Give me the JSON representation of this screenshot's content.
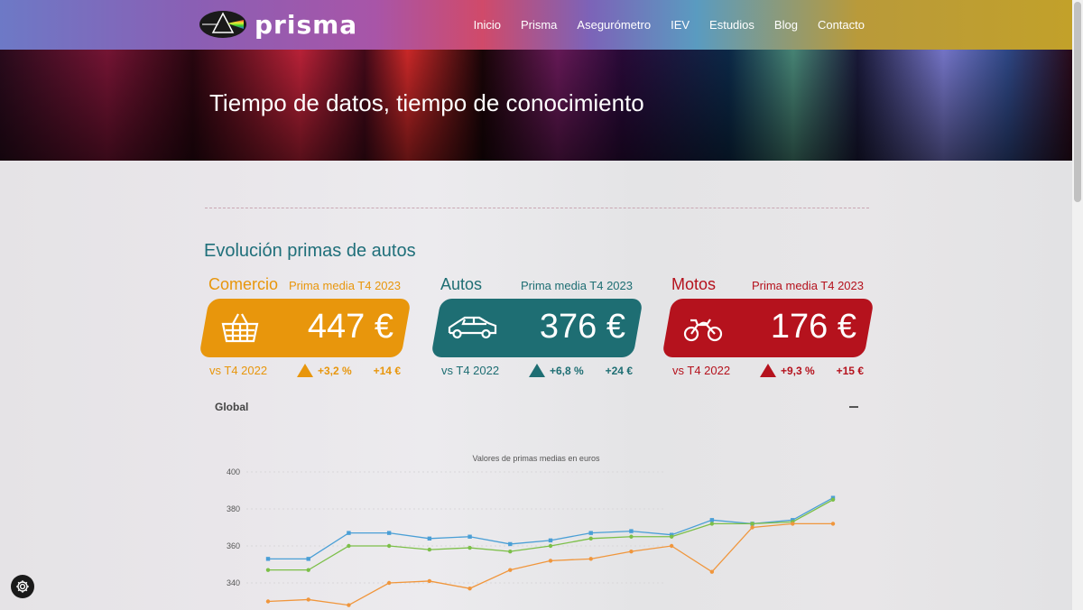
{
  "brand": {
    "logo_text": "prisma",
    "logo_icon": "prism-eye-icon"
  },
  "nav": {
    "items": [
      {
        "label": "Inicio"
      },
      {
        "label": "Prisma"
      },
      {
        "label": "Asegurómetro"
      },
      {
        "label": "IEV"
      },
      {
        "label": "Estudios"
      },
      {
        "label": "Blog"
      },
      {
        "label": "Contacto"
      }
    ]
  },
  "hero": {
    "title": "Tiempo de datos, tiempo de conocimiento"
  },
  "section": {
    "title": "Evolución primas de autos"
  },
  "cards": [
    {
      "name": "Comercio",
      "subtitle": "Prima media T4 2023",
      "price": "447 €",
      "icon": "shopping-basket-icon",
      "vs": "vs T4 2022",
      "pct": "+3,2 %",
      "eur": "+14 €",
      "color": "#e8960c"
    },
    {
      "name": "Autos",
      "subtitle": "Prima media T4 2023",
      "price": "376 €",
      "icon": "car-icon",
      "vs": "vs T4 2022",
      "pct": "+6,8 %",
      "eur": "+24 €",
      "color": "#1e6e73"
    },
    {
      "name": "Motos",
      "subtitle": "Prima media T4 2023",
      "price": "176 €",
      "icon": "motorcycle-icon",
      "vs": "vs T4 2022",
      "pct": "+9,3 %",
      "eur": "+15 €",
      "color": "#b5121d"
    }
  ],
  "global": {
    "label": "Global"
  },
  "chart_data": {
    "type": "line",
    "title": "Valores de primas medias en euros",
    "xlabel": "",
    "ylabel": "",
    "yticks": [
      400,
      380,
      360,
      340
    ],
    "ylim": [
      320,
      400
    ],
    "grid": true,
    "series": [
      {
        "color": "#4a9fd6",
        "marker": "square",
        "values": [
          353,
          353,
          367,
          367,
          364,
          365,
          361,
          363,
          367,
          368,
          366,
          374,
          372,
          374,
          386
        ]
      },
      {
        "color": "#7cbf48",
        "marker": "circle",
        "values": [
          347,
          347,
          360,
          360,
          358,
          359,
          357,
          360,
          364,
          365,
          365,
          372,
          372,
          373,
          385
        ]
      },
      {
        "color": "#f0963c",
        "marker": "circle",
        "values": [
          330,
          331,
          328,
          340,
          341,
          337,
          347,
          352,
          353,
          357,
          360,
          346,
          370,
          372,
          372
        ]
      }
    ]
  },
  "settings": {
    "icon": "gear-icon"
  }
}
